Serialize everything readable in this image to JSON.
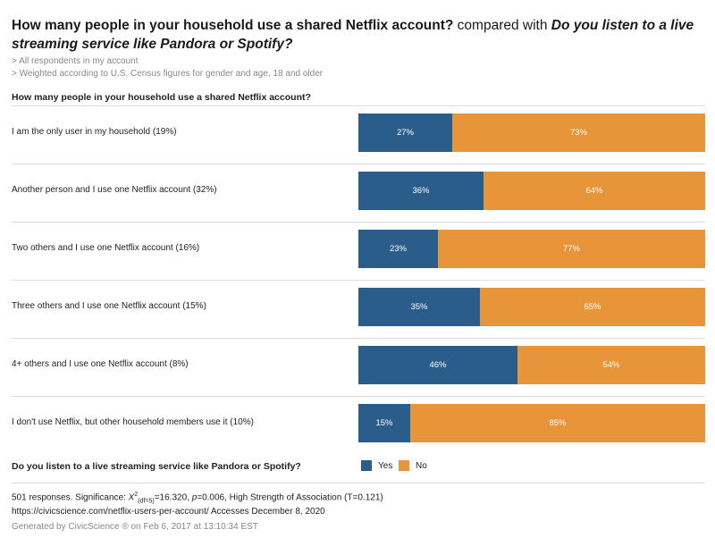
{
  "title": {
    "question1": "How many people in your household use a shared Netflix account?",
    "compared": " compared with ",
    "question2": "Do you listen to a live streaming service like Pandora or Spotify?"
  },
  "notes": [
    "> All respondents in my account",
    "> Weighted according to U.S. Census figures for gender and age, 18 and older"
  ],
  "chart_data": {
    "type": "bar",
    "orientation": "horizontal-stacked-100",
    "title": "How many people in your household use a shared Netflix account?",
    "categories": [
      "I am the only user in my household (19%)",
      "Another person and I use one Netflix account (32%)",
      "Two others and I use one Netflix account (16%)",
      "Three others and I use one Netflix account (15%)",
      "4+ others and I use one Netflix account (8%)",
      "I don't use Netflix, but other household members use it (10%)"
    ],
    "series": [
      {
        "name": "Yes",
        "color": "#2a5d8a",
        "values": [
          27,
          36,
          23,
          35,
          46,
          15
        ],
        "labels": [
          "27%",
          "36%",
          "23%",
          "35%",
          "46%",
          "15%"
        ]
      },
      {
        "name": "No",
        "color": "#e8953a",
        "values": [
          73,
          64,
          77,
          65,
          54,
          85
        ],
        "labels": [
          "73%",
          "64%",
          "77%",
          "65%",
          "54%",
          "85%"
        ]
      }
    ],
    "legend_title": "Do you listen to a live streaming service like Pandora or Spotify?",
    "xlim": [
      0,
      100
    ]
  },
  "footer": {
    "stats_prefix": "501 responses. Significance: ",
    "chi": "X",
    "chi_sup": "2",
    "chi_sub": "(df=5)",
    "stats_mid": "=16.320, ",
    "p": "p",
    "stats_end": "=0.006, High Strength of Association (T=0.121)",
    "source": "https://civicscience.com/netflix-users-per-account/ Accesses December 8, 2020",
    "generated": "Generated by CivicScience ® on Feb 6, 2017 at 13:10:34 EST"
  }
}
